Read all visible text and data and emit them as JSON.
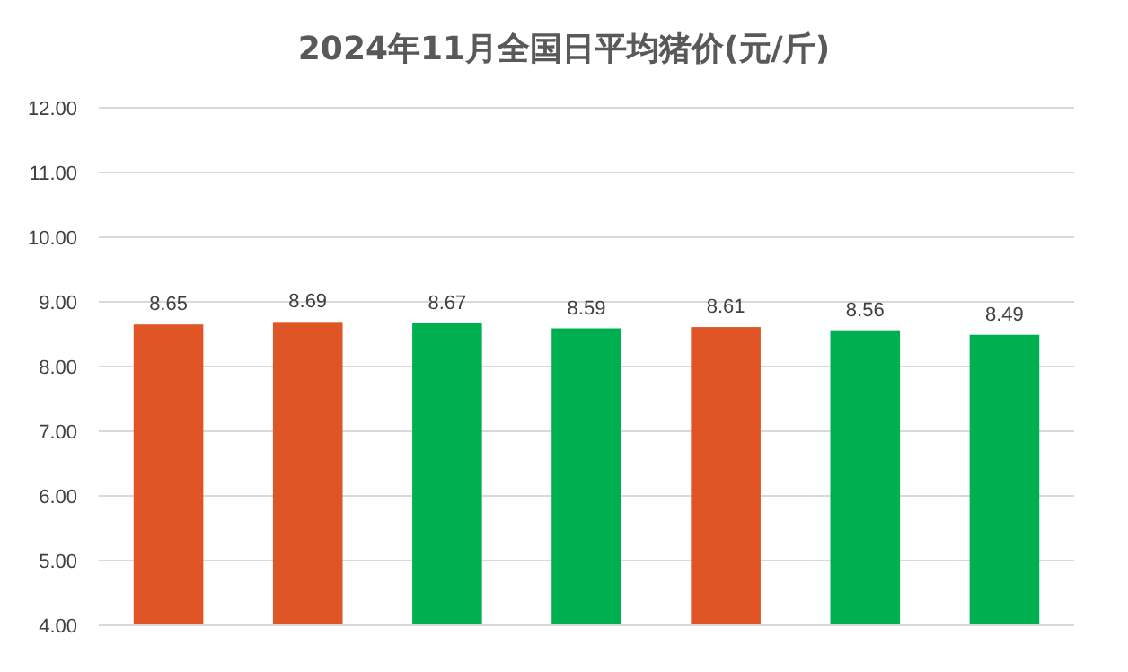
{
  "chart_data": {
    "type": "bar",
    "title": "2024年11月全国日平均猪价(元/斤)",
    "categories": [
      null,
      null,
      null,
      null,
      null,
      null,
      null
    ],
    "values": [
      8.65,
      8.69,
      8.67,
      8.59,
      8.61,
      8.56,
      8.49
    ],
    "colors": [
      "#e05526",
      "#e05526",
      "#00b050",
      "#00b050",
      "#e05526",
      "#00b050",
      "#00b050"
    ],
    "ylim": [
      4,
      12
    ],
    "yticks": [
      {
        "value": 4,
        "label": "4.00"
      },
      {
        "value": 5,
        "label": "5.00"
      },
      {
        "value": 6,
        "label": "6.00"
      },
      {
        "value": 7,
        "label": "7.00"
      },
      {
        "value": 8,
        "label": "8.00"
      },
      {
        "value": 9,
        "label": "9.00"
      },
      {
        "value": 10,
        "label": "10.00"
      },
      {
        "value": 11,
        "label": "11.00"
      },
      {
        "value": 12,
        "label": "12.00"
      }
    ],
    "grid": "y",
    "data_labels": true
  }
}
